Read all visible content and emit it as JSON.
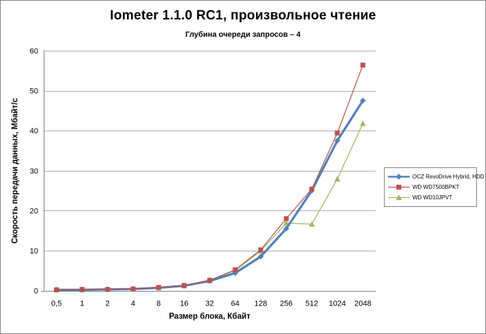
{
  "frame": {
    "background": "#FFFFFF",
    "border_color": "#848484"
  },
  "chart_data": {
    "type": "line",
    "title": "Iometer 1.1.0 RC1, произвольное чтение",
    "subtitle": "Глубина очереди запросов – 4",
    "xlabel": "Размер блока, Кбайт",
    "ylabel": "Скорость передачи данных, Мбайт/с",
    "categories": [
      "0,5",
      "1",
      "2",
      "4",
      "8",
      "16",
      "32",
      "64",
      "128",
      "256",
      "512",
      "1024",
      "2048"
    ],
    "ylim": [
      0,
      60
    ],
    "yticks": [
      0,
      10,
      20,
      30,
      40,
      50,
      60
    ],
    "grid": "horizontal-major",
    "legend_position": "right",
    "axis_color": "#808080",
    "gridline_color": "#ACACAC",
    "series": [
      {
        "name": "OCZ RevoDrive Hybrid, HDD",
        "color": "#4F81BD",
        "marker": "diamond",
        "line_width": 3.25,
        "values": [
          0.2,
          0.2,
          0.3,
          0.4,
          0.7,
          1.2,
          2.4,
          4.4,
          8.5,
          15.5,
          25.0,
          37.5,
          47.5
        ]
      },
      {
        "name": "WD WD7500BPKT",
        "color": "#C0504D",
        "marker": "square",
        "line_width": 1.25,
        "values": [
          0.2,
          0.3,
          0.3,
          0.4,
          0.8,
          1.3,
          2.6,
          5.2,
          10.2,
          18.0,
          25.4,
          39.4,
          56.4
        ]
      },
      {
        "name": "WD WD10JPVT",
        "color": "#9BBB59",
        "marker": "triangle",
        "line_width": 1.25,
        "values": [
          0.2,
          0.2,
          0.3,
          0.4,
          0.7,
          1.2,
          2.5,
          5.0,
          9.9,
          16.9,
          16.6,
          27.9,
          41.8
        ]
      }
    ],
    "draw_order": [
      2,
      0,
      1
    ]
  }
}
